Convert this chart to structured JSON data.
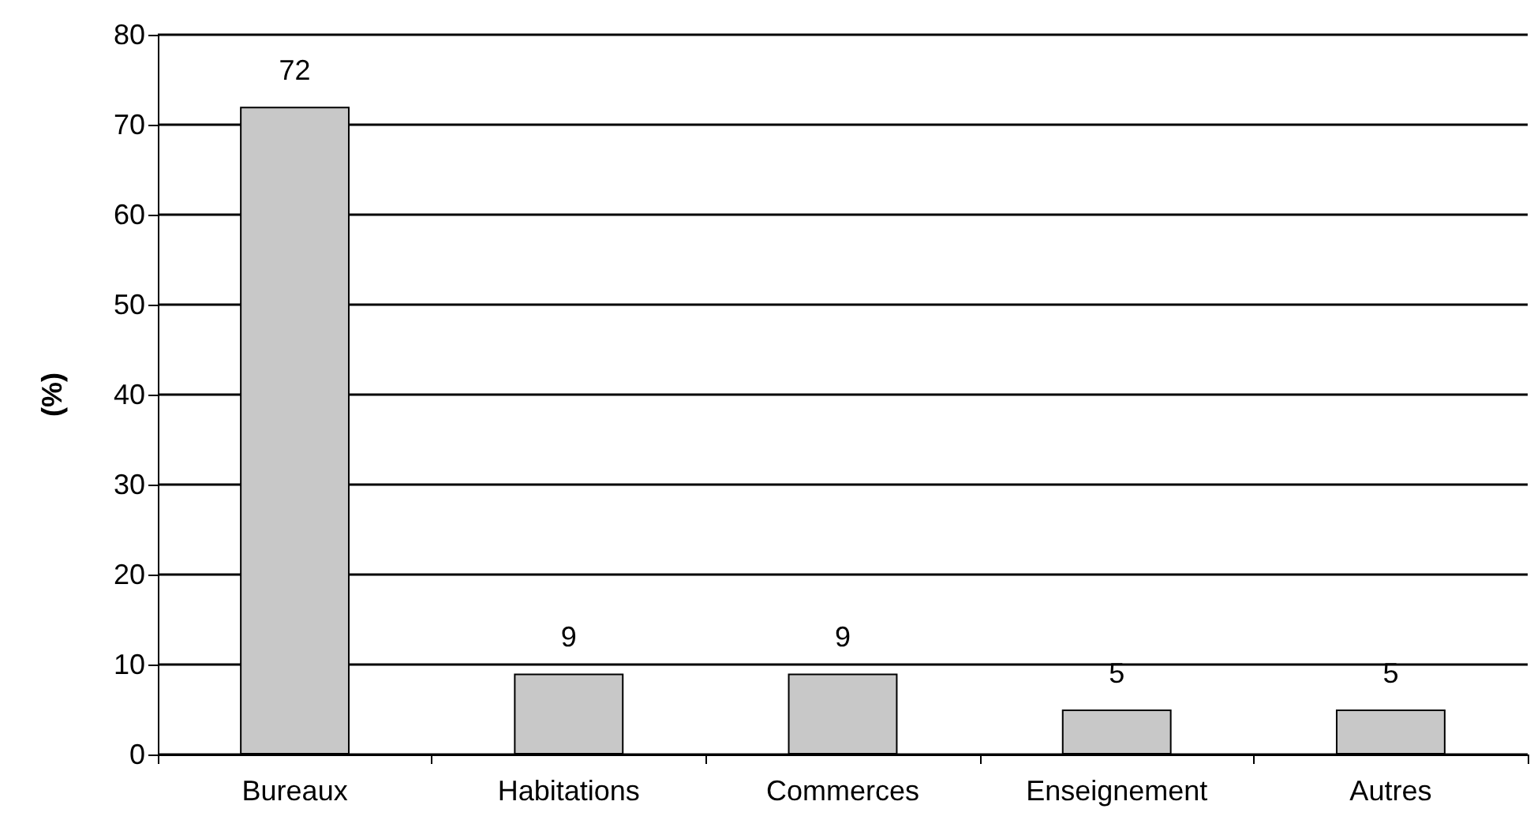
{
  "chart_data": {
    "type": "bar",
    "ylabel": "(%)",
    "categories": [
      "Bureaux",
      "Habitations",
      "Commerces",
      "Enseignement",
      "Autres"
    ],
    "values": [
      72,
      9,
      9,
      5,
      5
    ],
    "color": "#c8c8c8",
    "ylim": [
      0,
      80
    ],
    "yticks": [
      0,
      10,
      20,
      30,
      40,
      50,
      60,
      70,
      80
    ],
    "grid": "y",
    "data_labels": true
  }
}
